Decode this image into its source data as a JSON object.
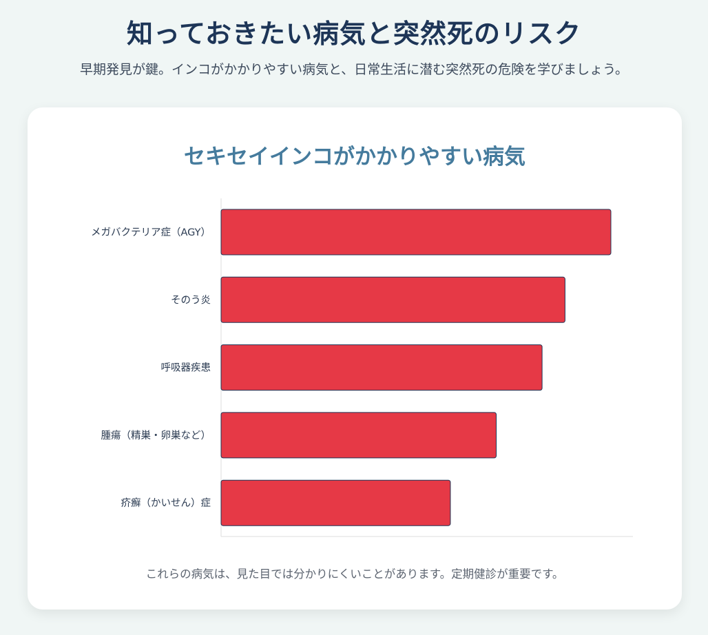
{
  "header": {
    "title": "知っておきたい病気と突然死のリスク",
    "subtitle": "早期発見が鍵。インコがかかりやすい病気と、日常生活に潜む突然死の危険を学びましょう。"
  },
  "card": {
    "note": "これらの病気は、見た目では分かりにくいことがあります。定期健診が重要です。"
  },
  "colors": {
    "bar_fill": "#e63946",
    "bar_stroke": "#1d3557",
    "title": "#1d3557",
    "card_title": "#457b9d"
  },
  "chart_data": {
    "type": "bar",
    "orientation": "horizontal",
    "title": "セキセイインコがかかりやすい病気",
    "categories": [
      "メガバクテリア症（AGY）",
      "そのう炎",
      "呼吸器疾患",
      "腫瘍（精巣・卵巣など）",
      "疥癬（かいせん）症"
    ],
    "values": [
      85,
      75,
      70,
      60,
      50
    ],
    "xlim": [
      0,
      90
    ],
    "xlabel": "",
    "ylabel": "",
    "grid": false,
    "legend": "none",
    "x_ticks_visible": false
  }
}
